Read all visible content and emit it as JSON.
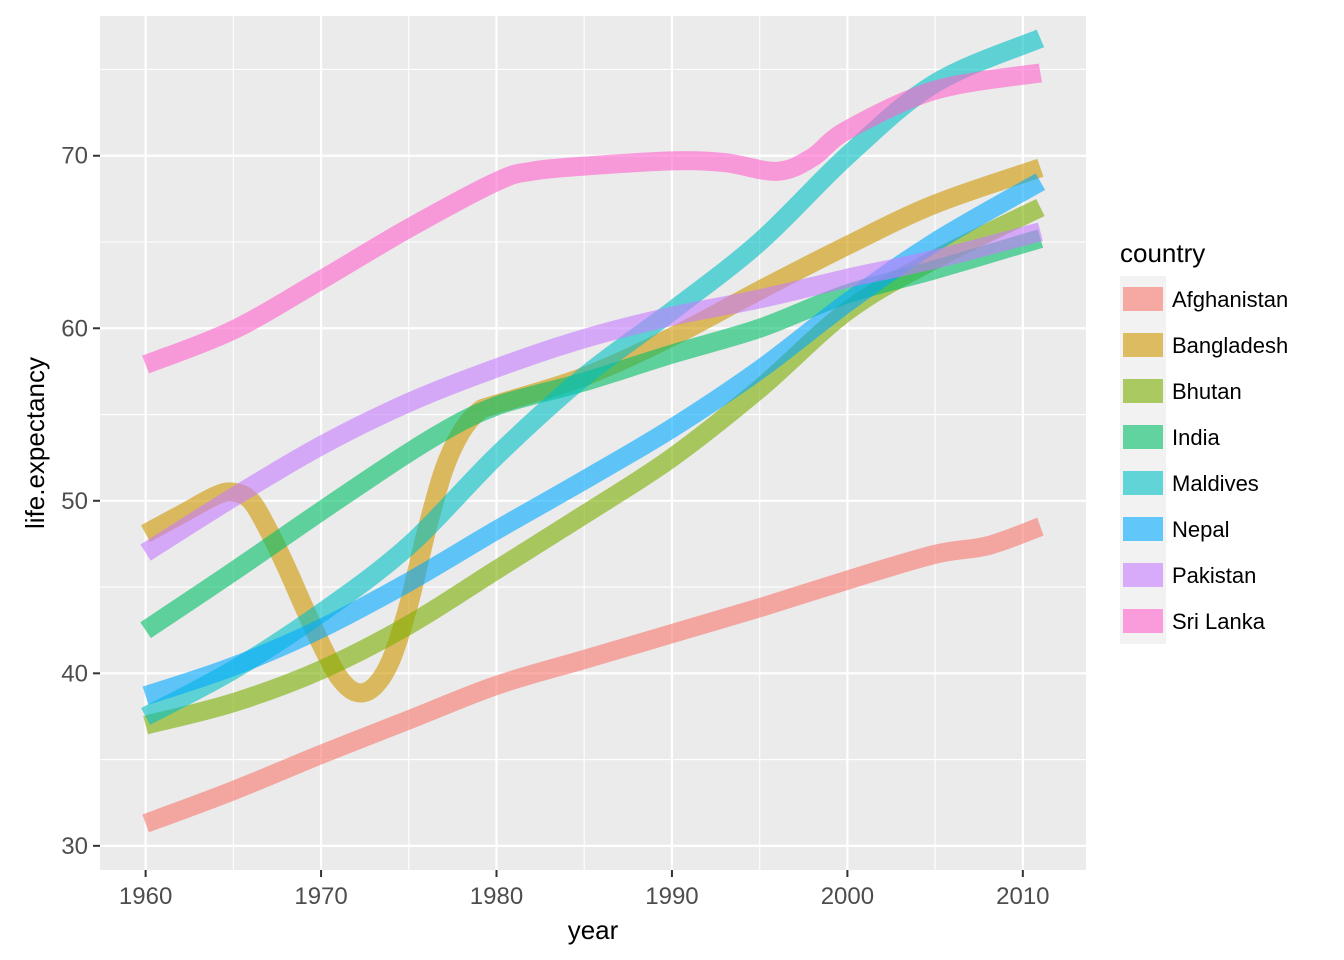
{
  "chart_data": {
    "type": "line",
    "title": "",
    "xlabel": "year",
    "ylabel": "life.expectancy",
    "xlim": [
      1957.4,
      2013.6
    ],
    "ylim": [
      28.6,
      78.1
    ],
    "x_ticks": [
      1960,
      1970,
      1980,
      1990,
      2000,
      2010
    ],
    "x_tick_labels": [
      "1960",
      "1970",
      "1980",
      "1990",
      "2000",
      "2010"
    ],
    "y_ticks": [
      30,
      40,
      50,
      60,
      70
    ],
    "y_tick_labels": [
      "30",
      "40",
      "50",
      "60",
      "70"
    ],
    "grid": true,
    "legend_title": "country",
    "legend_position": "right",
    "series": [
      {
        "name": "Afghanistan",
        "color": "#F8766D",
        "x": [
          1960,
          1965,
          1970,
          1975,
          1980,
          1985,
          1990,
          1995,
          2000,
          2005,
          2008,
          2011
        ],
        "y": [
          31.3,
          33.2,
          35.3,
          37.3,
          39.3,
          40.8,
          42.3,
          43.8,
          45.4,
          46.9,
          47.4,
          48.5
        ]
      },
      {
        "name": "Bangladesh",
        "color": "#CD9600",
        "x": [
          1960,
          1962,
          1964,
          1965,
          1966,
          1967,
          1968,
          1969,
          1970,
          1971,
          1972,
          1973,
          1974,
          1975,
          1976,
          1977,
          1978,
          1979,
          1980,
          1985,
          1990,
          1995,
          2000,
          2005,
          2011
        ],
        "y": [
          48.1,
          49.2,
          50.3,
          50.5,
          50.0,
          48.3,
          46.2,
          43.9,
          41.7,
          39.8,
          38.9,
          39.2,
          40.8,
          44.0,
          48.2,
          51.8,
          54.0,
          55.2,
          55.6,
          57.2,
          59.5,
          62.2,
          64.8,
          67.2,
          69.3
        ]
      },
      {
        "name": "Bhutan",
        "color": "#7CAE00",
        "x": [
          1960,
          1965,
          1970,
          1975,
          1980,
          1985,
          1990,
          1995,
          2000,
          2005,
          2011
        ],
        "y": [
          37.0,
          38.3,
          40.2,
          42.8,
          46.0,
          49.2,
          52.5,
          56.5,
          61.0,
          64.0,
          67.0
        ]
      },
      {
        "name": "India",
        "color": "#00BE67",
        "x": [
          1960,
          1965,
          1970,
          1975,
          1978,
          1980,
          1982,
          1985,
          1990,
          1995,
          2000,
          2005,
          2011
        ],
        "y": [
          42.5,
          45.9,
          49.4,
          52.8,
          54.6,
          55.5,
          56.1,
          56.9,
          58.5,
          60.0,
          62.0,
          63.4,
          65.2
        ]
      },
      {
        "name": "Maldives",
        "color": "#00BFC4",
        "x": [
          1960,
          1965,
          1970,
          1975,
          1980,
          1985,
          1990,
          1995,
          2000,
          2005,
          2011
        ],
        "y": [
          37.5,
          40.2,
          43.5,
          47.4,
          52.6,
          57.2,
          61.0,
          65.0,
          70.0,
          74.2,
          76.8
        ]
      },
      {
        "name": "Nepal",
        "color": "#00A9FF",
        "x": [
          1960,
          1965,
          1970,
          1975,
          1980,
          1985,
          1990,
          1995,
          2000,
          2005,
          2011
        ],
        "y": [
          38.7,
          40.4,
          42.6,
          45.3,
          48.3,
          51.2,
          54.2,
          57.6,
          61.5,
          65.0,
          68.5
        ]
      },
      {
        "name": "Pakistan",
        "color": "#C77CFF",
        "x": [
          1960,
          1965,
          1970,
          1975,
          1980,
          1985,
          1990,
          1995,
          2000,
          2005,
          2011
        ],
        "y": [
          47.0,
          50.2,
          53.2,
          55.7,
          57.7,
          59.4,
          60.7,
          61.7,
          62.9,
          64.0,
          65.6
        ]
      },
      {
        "name": "Sri Lanka",
        "color": "#FF61CC",
        "x": [
          1960,
          1965,
          1970,
          1975,
          1980,
          1982,
          1985,
          1990,
          1993,
          1996,
          1998,
          2000,
          2005,
          2011
        ],
        "y": [
          57.9,
          59.9,
          62.8,
          65.8,
          68.5,
          69.1,
          69.4,
          69.7,
          69.6,
          69.1,
          69.9,
          71.5,
          73.8,
          74.8
        ]
      }
    ]
  }
}
